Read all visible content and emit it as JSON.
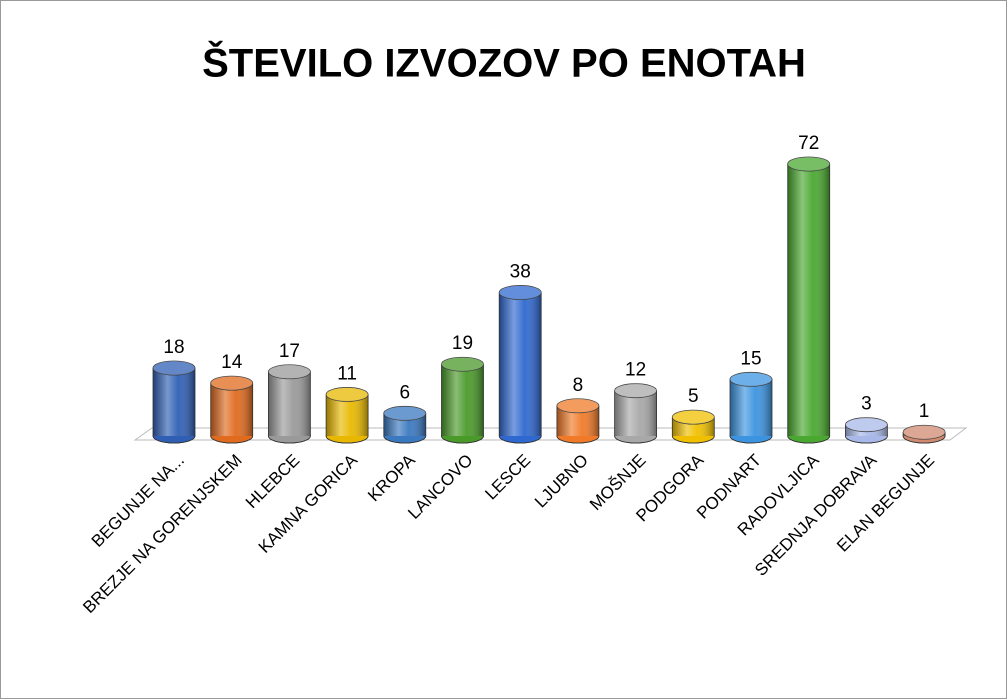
{
  "chart_data": {
    "type": "bar3d",
    "title": "ŠTEVILO IZVOZOV PO ENOTAH",
    "categories": [
      "BEGUNJE NA...",
      "BREZJE NA GORENJSKEM",
      "HLEBCE",
      "KAMNA GORICA",
      "KROPA",
      "LANCOVO",
      "LESCE",
      "LJUBNO",
      "MOŠNJE",
      "PODGORA",
      "PODNART",
      "RADOVLJICA",
      "SREDNJA DOBRAVA",
      "ELAN BEGUNJE"
    ],
    "values": [
      18,
      14,
      17,
      11,
      6,
      19,
      38,
      8,
      12,
      5,
      15,
      72,
      3,
      1
    ],
    "colors": [
      "#2f5fb5",
      "#e06a1e",
      "#9a9a9a",
      "#e8b800",
      "#3a78c0",
      "#4a9a2a",
      "#2f68d0",
      "#f07a28",
      "#a8a8a8",
      "#f0c000",
      "#3c94e0",
      "#4aa830",
      "#a8b8e8",
      "#d08a70"
    ]
  }
}
